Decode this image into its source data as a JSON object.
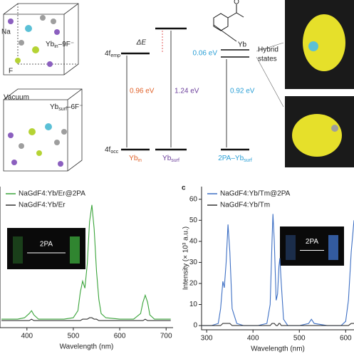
{
  "diagram": {
    "na": "Na",
    "f": "F",
    "yb_in_label": {
      "main": "Yb",
      "sub": "in",
      "tail": "–9F⁻"
    },
    "vacuum": "Vacuum",
    "yb_surf_label": {
      "main": "Yb",
      "sub": "surf",
      "tail": "–6F⁻"
    },
    "delta_e": "ΔE",
    "emp": {
      "main": "4f",
      "sub": "emp"
    },
    "occ": {
      "main": "4f",
      "sub": "occ"
    },
    "e1": "0.96 eV",
    "e2": "1.24 eV",
    "e3": "0.06 eV",
    "e4": "0.92 eV",
    "bottom1": {
      "main": "Yb",
      "sub": "in"
    },
    "bottom2": {
      "main": "Yb",
      "sub": "surf"
    },
    "bottom3": {
      "main": "2PA–Yb",
      "sub": "surf"
    },
    "yb": "Yb",
    "o": "O",
    "hybrid": [
      "Hybrid",
      "states"
    ]
  },
  "chart_data": [
    {
      "type": "line",
      "xlabel": "Wavelength (nm)",
      "inset": "2PA",
      "xlim": [
        342,
        715
      ],
      "ylim": [
        0,
        100
      ],
      "xticks": [
        400,
        500,
        600,
        700
      ],
      "x": [
        345,
        360,
        380,
        395,
        405,
        410,
        415,
        425,
        450,
        480,
        500,
        510,
        515,
        520,
        525,
        530,
        535,
        540,
        545,
        550,
        555,
        560,
        570,
        600,
        630,
        645,
        650,
        655,
        660,
        665,
        675,
        700,
        710
      ],
      "series": [
        {
          "name": "NaGdF4:Yb/Er@2PA",
          "color": "#3aa43a",
          "values": [
            6,
            6,
            6,
            7,
            10,
            12,
            9,
            6,
            6,
            6,
            7,
            12,
            25,
            33,
            28,
            45,
            75,
            87,
            70,
            40,
            20,
            10,
            7,
            6,
            6,
            10,
            18,
            23,
            18,
            9,
            6,
            6,
            6
          ]
        },
        {
          "name": "NaGdF4:Yb/Er",
          "color": "#333333",
          "values": [
            5,
            5,
            5,
            5,
            5,
            6,
            5,
            5,
            5,
            5,
            5,
            5,
            5,
            6,
            6,
            6,
            7,
            7,
            6,
            6,
            5,
            5,
            5,
            5,
            5,
            5,
            5,
            6,
            5,
            5,
            5,
            5,
            5
          ]
        }
      ]
    },
    {
      "type": "line",
      "panel_label": "c",
      "xlabel": "Wavelength (nm)",
      "ylabel": "Intensity (× 10³ a.u.)",
      "inset": "2PA",
      "xlim": [
        289,
        618
      ],
      "ylim": [
        -2,
        66
      ],
      "xticks": [
        300,
        400,
        500,
        600
      ],
      "yticks": [
        0,
        10,
        20,
        30,
        40,
        50,
        60
      ],
      "x": [
        290,
        310,
        325,
        330,
        335,
        338,
        342,
        346,
        350,
        355,
        365,
        380,
        410,
        430,
        437,
        441,
        443,
        446,
        450,
        453,
        456,
        458,
        461,
        466,
        475,
        500,
        520,
        526,
        532,
        560,
        590,
        600,
        606,
        612,
        618
      ],
      "series": [
        {
          "name": "NaGdF4:Yb/Tm@2PA",
          "color": "#3d6fc4",
          "values": [
            0,
            0,
            1,
            8,
            21,
            18,
            30,
            48,
            35,
            8,
            1,
            0,
            0,
            1,
            10,
            40,
            53,
            40,
            12,
            15,
            28,
            32,
            20,
            3,
            0,
            0,
            1,
            3,
            1,
            0,
            0,
            2,
            12,
            35,
            50
          ]
        },
        {
          "name": "NaGdF4:Yb/Tm",
          "color": "#333333",
          "values": [
            0,
            0,
            0,
            0,
            1,
            1,
            1,
            1,
            1,
            0,
            0,
            0,
            0,
            0,
            0,
            1,
            1,
            1,
            0,
            0,
            1,
            1,
            0,
            0,
            0,
            0,
            0,
            0,
            0,
            0,
            0,
            0,
            0,
            1,
            1
          ]
        }
      ]
    }
  ]
}
